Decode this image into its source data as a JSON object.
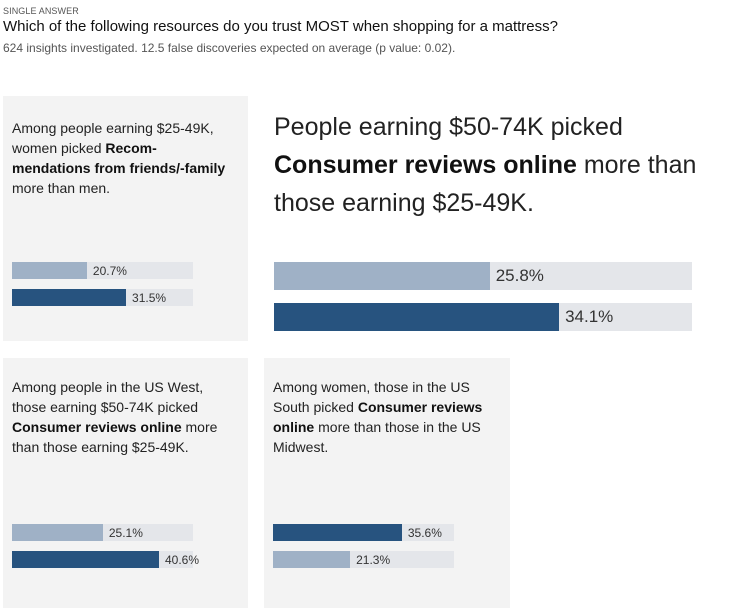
{
  "header": {
    "question_type": "SINGLE ANSWER",
    "question": "Which of the following resources do you trust MOST when shopping for a mattress?",
    "meta": "624 insights investigated. 12.5 false discoveries expected on average (p value: 0.02)."
  },
  "colors": {
    "bar_light": "#9fb1c6",
    "bar_dark": "#27537f",
    "track": "#e4e6ea",
    "card_bg": "#f3f3f3"
  },
  "insights": [
    {
      "pre": "Among people earning $25-49K, women picked ",
      "answer": "Recom-mendations from friends/-family",
      "post": " more than men.",
      "bars": [
        {
          "value": 20.7,
          "label": "20.7%",
          "tone": "light"
        },
        {
          "value": 31.5,
          "label": "31.5%",
          "tone": "dark"
        }
      ]
    },
    {
      "pre": "People earning $50-74K picked ",
      "answer": "Consumer reviews online",
      "post": " more than those earning $25-49K.",
      "bars": [
        {
          "value": 25.8,
          "label": "25.8%",
          "tone": "light"
        },
        {
          "value": 34.1,
          "label": "34.1%",
          "tone": "dark"
        }
      ]
    },
    {
      "pre": "Among people in the US West, those earning $50-74K picked ",
      "answer": "Consumer reviews online",
      "post": " more than those earning $25-49K.",
      "bars": [
        {
          "value": 25.1,
          "label": "25.1%",
          "tone": "light"
        },
        {
          "value": 40.6,
          "label": "40.6%",
          "tone": "dark"
        }
      ]
    },
    {
      "pre": "Among women, those in the US South picked ",
      "answer": "Consumer reviews online",
      "post": " more than those in the US Midwest.",
      "bars": [
        {
          "value": 35.6,
          "label": "35.6%",
          "tone": "dark"
        },
        {
          "value": 21.3,
          "label": "21.3%",
          "tone": "light"
        }
      ]
    }
  ]
}
